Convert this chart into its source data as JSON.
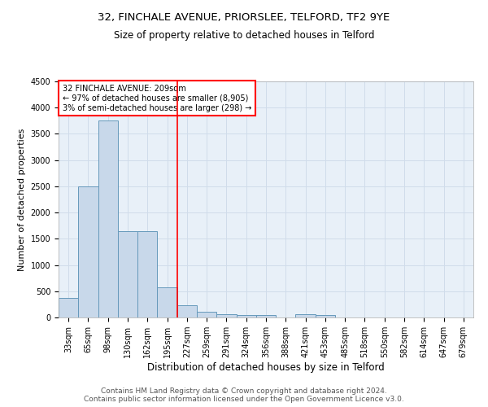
{
  "title1": "32, FINCHALE AVENUE, PRIORSLEE, TELFORD, TF2 9YE",
  "title2": "Size of property relative to detached houses in Telford",
  "xlabel": "Distribution of detached houses by size in Telford",
  "ylabel": "Number of detached properties",
  "categories": [
    "33sqm",
    "65sqm",
    "98sqm",
    "130sqm",
    "162sqm",
    "195sqm",
    "227sqm",
    "259sqm",
    "291sqm",
    "324sqm",
    "356sqm",
    "388sqm",
    "421sqm",
    "453sqm",
    "485sqm",
    "518sqm",
    "550sqm",
    "582sqm",
    "614sqm",
    "647sqm",
    "679sqm"
  ],
  "values": [
    380,
    2500,
    3750,
    1650,
    1650,
    580,
    240,
    110,
    55,
    40,
    40,
    0,
    55,
    40,
    0,
    0,
    0,
    0,
    0,
    0,
    0
  ],
  "bar_color": "#c8d8ea",
  "bar_edge_color": "#6699bb",
  "vline_color": "red",
  "vline_pos": 5.5,
  "annotation_text": "32 FINCHALE AVENUE: 209sqm\n← 97% of detached houses are smaller (8,905)\n3% of semi-detached houses are larger (298) →",
  "annotation_box_color": "white",
  "annotation_box_edge": "red",
  "ylim": [
    0,
    4500
  ],
  "yticks": [
    0,
    500,
    1000,
    1500,
    2000,
    2500,
    3000,
    3500,
    4000,
    4500
  ],
  "grid_color": "#d0dcea",
  "background_color": "#e8f0f8",
  "footer": "Contains HM Land Registry data © Crown copyright and database right 2024.\nContains public sector information licensed under the Open Government Licence v3.0.",
  "title1_fontsize": 9.5,
  "title2_fontsize": 8.5,
  "xlabel_fontsize": 8.5,
  "ylabel_fontsize": 8,
  "tick_fontsize": 7,
  "footer_fontsize": 6.5
}
